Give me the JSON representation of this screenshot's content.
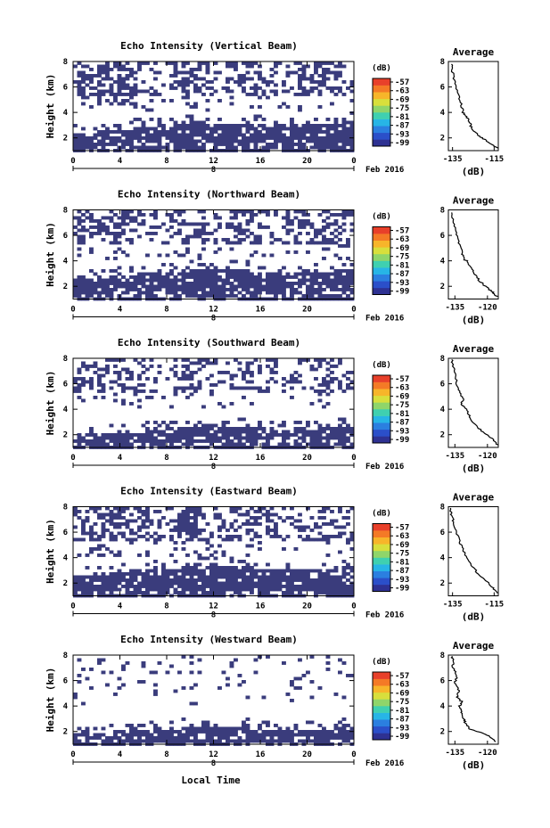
{
  "figure": {
    "xlabel": "Local Time",
    "colorbar_label": "(dB)",
    "colorbar_ticks": [
      "-57",
      "-63",
      "-69",
      "-75",
      "-81",
      "-87",
      "-93",
      "-99"
    ],
    "colormap": [
      "#2e3192",
      "#2b4fc9",
      "#2b7fe0",
      "#27b5e6",
      "#3fd0b0",
      "#8fd56a",
      "#d8df3c",
      "#f7b52a",
      "#f47a26",
      "#e8402a"
    ],
    "fill_color": "#3a3c7c",
    "average_title": "Average",
    "average_xlabel": "(dB)"
  },
  "chart_data": [
    {
      "type": "heatmap",
      "title": "Echo Intensity (Vertical Beam)",
      "ylabel": "Height (km)",
      "ylim": [
        1,
        8
      ],
      "yticks": [
        "8",
        "6",
        "4",
        "2"
      ],
      "xlim": [
        0,
        24
      ],
      "xticks": [
        "0",
        "4",
        "8",
        "12",
        "16",
        "20",
        "0"
      ],
      "date_label": "Feb 2016",
      "day_label": "8",
      "low_layer_top_km": [
        2.3,
        2.4,
        2.5,
        2.6,
        2.7,
        2.8,
        2.9,
        3.0,
        3.0,
        3.1,
        3.1,
        3.1,
        3.2,
        3.2,
        3.1,
        3.1,
        3.0,
        3.0,
        2.9,
        2.9,
        3.0,
        3.1,
        3.2,
        3.3,
        3.3
      ],
      "upper_echo_density": [
        0.55,
        0.5,
        0.6,
        0.65,
        0.55,
        0.45,
        0.35,
        0.25,
        0.45,
        0.55,
        0.5,
        0.4,
        0.25,
        0.35,
        0.45,
        0.5,
        0.35,
        0.25,
        0.3,
        0.45,
        0.5,
        0.55,
        0.45,
        0.35,
        0.5
      ],
      "average": {
        "title": "Average",
        "xlabel": "(dB)",
        "xticks": [
          "-135",
          "-115"
        ],
        "xlim": [
          -137,
          -113
        ],
        "ylim": [
          1,
          8
        ],
        "yticks": [
          "8",
          "6",
          "4",
          "2"
        ],
        "profile": [
          [
            -113.5,
            1.2
          ],
          [
            -117,
            1.6
          ],
          [
            -121,
            2.0
          ],
          [
            -124,
            2.4
          ],
          [
            -126,
            2.8
          ],
          [
            -126.5,
            3.2
          ],
          [
            -128,
            3.6
          ],
          [
            -130,
            4.0
          ],
          [
            -131,
            4.8
          ],
          [
            -132.5,
            5.6
          ],
          [
            -134,
            6.4
          ],
          [
            -135,
            7.2
          ],
          [
            -135.5,
            7.8
          ]
        ]
      }
    },
    {
      "type": "heatmap",
      "title": "Echo Intensity (Northward Beam)",
      "ylabel": "Height (km)",
      "ylim": [
        1,
        8
      ],
      "yticks": [
        "8",
        "6",
        "4",
        "2"
      ],
      "xlim": [
        0,
        24
      ],
      "xticks": [
        "0",
        "4",
        "8",
        "12",
        "16",
        "20",
        "0"
      ],
      "date_label": "Feb 2016",
      "day_label": "8",
      "low_layer_top_km": [
        2.5,
        2.6,
        2.7,
        2.8,
        2.9,
        3.0,
        3.1,
        3.2,
        3.2,
        3.3,
        3.3,
        3.4,
        3.4,
        3.3,
        3.3,
        3.2,
        3.1,
        3.0,
        3.0,
        3.0,
        3.1,
        3.2,
        3.3,
        3.4,
        3.5
      ],
      "upper_echo_density": [
        0.5,
        0.45,
        0.55,
        0.6,
        0.5,
        0.4,
        0.35,
        0.3,
        0.4,
        0.5,
        0.45,
        0.35,
        0.3,
        0.35,
        0.4,
        0.45,
        0.3,
        0.25,
        0.3,
        0.4,
        0.45,
        0.5,
        0.4,
        0.35,
        0.45
      ],
      "average": {
        "title": "Average",
        "xlabel": "(dB)",
        "xticks": [
          "-135",
          "-120"
        ],
        "xlim": [
          -138,
          -115
        ],
        "ylim": [
          1,
          8
        ],
        "yticks": [
          "8",
          "6",
          "4",
          "2"
        ],
        "profile": [
          [
            -115.5,
            1.2
          ],
          [
            -118,
            1.6
          ],
          [
            -121,
            2.0
          ],
          [
            -124,
            2.5
          ],
          [
            -126,
            3.0
          ],
          [
            -128,
            3.5
          ],
          [
            -129,
            4.0
          ],
          [
            -131,
            4.1
          ],
          [
            -131.5,
            4.6
          ],
          [
            -133,
            5.4
          ],
          [
            -134.5,
            6.2
          ],
          [
            -135.5,
            7.0
          ],
          [
            -136.5,
            7.8
          ]
        ]
      }
    },
    {
      "type": "heatmap",
      "title": "Echo Intensity (Southward Beam)",
      "ylabel": "Height (km)",
      "ylim": [
        1,
        8
      ],
      "yticks": [
        "8",
        "6",
        "4",
        "2"
      ],
      "xlim": [
        0,
        24
      ],
      "xticks": [
        "0",
        "4",
        "8",
        "12",
        "16",
        "20",
        "0"
      ],
      "date_label": "Feb 2016",
      "day_label": "8",
      "low_layer_top_km": [
        1.9,
        2.0,
        2.0,
        2.1,
        2.1,
        2.2,
        2.3,
        2.4,
        2.5,
        2.6,
        2.7,
        2.8,
        2.8,
        2.7,
        2.6,
        2.5,
        2.4,
        2.3,
        2.3,
        2.3,
        2.4,
        2.5,
        2.6,
        2.8,
        2.9
      ],
      "upper_echo_density": [
        0.4,
        0.35,
        0.4,
        0.45,
        0.4,
        0.3,
        0.25,
        0.2,
        0.35,
        0.45,
        0.4,
        0.3,
        0.25,
        0.3,
        0.35,
        0.4,
        0.25,
        0.2,
        0.25,
        0.3,
        0.35,
        0.4,
        0.3,
        0.25,
        0.35
      ],
      "average": {
        "title": "Average",
        "xlabel": "(dB)",
        "xticks": [
          "-135",
          "-120"
        ],
        "xlim": [
          -138,
          -115
        ],
        "ylim": [
          1,
          8
        ],
        "yticks": [
          "8",
          "6",
          "4",
          "2"
        ],
        "profile": [
          [
            -115.5,
            1.2
          ],
          [
            -118,
            1.7
          ],
          [
            -122,
            2.2
          ],
          [
            -126,
            2.8
          ],
          [
            -128,
            3.4
          ],
          [
            -130,
            4.0
          ],
          [
            -132,
            4.4
          ],
          [
            -131,
            4.8
          ],
          [
            -133,
            5.3
          ],
          [
            -134,
            6.0
          ],
          [
            -135,
            6.8
          ],
          [
            -136,
            7.5
          ],
          [
            -136.5,
            7.9
          ]
        ]
      }
    },
    {
      "type": "heatmap",
      "title": "Echo Intensity (Eastward Beam)",
      "ylabel": "Height (km)",
      "ylim": [
        1,
        8
      ],
      "yticks": [
        "8",
        "6",
        "4",
        "2"
      ],
      "xlim": [
        0,
        24
      ],
      "xticks": [
        "0",
        "4",
        "8",
        "12",
        "16",
        "20",
        "0"
      ],
      "date_label": "Feb 2016",
      "day_label": "8",
      "low_layer_top_km": [
        2.5,
        2.6,
        2.7,
        2.8,
        2.9,
        3.0,
        3.1,
        3.2,
        3.2,
        3.3,
        3.3,
        3.4,
        3.4,
        3.3,
        3.3,
        3.2,
        3.1,
        3.0,
        3.0,
        3.0,
        3.1,
        3.2,
        3.3,
        3.4,
        3.4
      ],
      "upper_echo_density": [
        0.5,
        0.45,
        0.55,
        0.6,
        0.5,
        0.4,
        0.35,
        0.3,
        0.45,
        0.55,
        0.5,
        0.4,
        0.3,
        0.35,
        0.45,
        0.5,
        0.35,
        0.3,
        0.3,
        0.4,
        0.45,
        0.5,
        0.4,
        0.35,
        0.45
      ],
      "average": {
        "title": "Average",
        "xlabel": "(dB)",
        "xticks": [
          "-135",
          "-115"
        ],
        "xlim": [
          -137,
          -113
        ],
        "ylim": [
          1,
          8
        ],
        "yticks": [
          "8",
          "6",
          "4",
          "2"
        ],
        "profile": [
          [
            -113.5,
            1.2
          ],
          [
            -116,
            1.7
          ],
          [
            -119,
            2.2
          ],
          [
            -123,
            2.8
          ],
          [
            -126,
            3.4
          ],
          [
            -128,
            4.0
          ],
          [
            -130,
            4.6
          ],
          [
            -131.5,
            5.2
          ],
          [
            -133,
            6.0
          ],
          [
            -134.5,
            6.8
          ],
          [
            -135.5,
            7.4
          ],
          [
            -136,
            7.9
          ]
        ]
      }
    },
    {
      "type": "heatmap",
      "title": "Echo Intensity (Westward Beam)",
      "ylabel": "Height (km)",
      "ylim": [
        1,
        8
      ],
      "yticks": [
        "8",
        "6",
        "4",
        "2"
      ],
      "xlim": [
        0,
        24
      ],
      "xticks": [
        "0",
        "4",
        "8",
        "12",
        "16",
        "20",
        "0"
      ],
      "date_label": "Feb 2016",
      "day_label": "8",
      "low_layer_top_km": [
        1.8,
        1.9,
        1.9,
        2.0,
        2.0,
        2.0,
        2.1,
        2.2,
        2.2,
        2.3,
        2.3,
        2.4,
        2.4,
        2.4,
        2.3,
        2.3,
        2.2,
        2.2,
        2.1,
        2.1,
        2.1,
        2.2,
        2.3,
        2.4,
        2.5
      ],
      "upper_echo_density": [
        0.15,
        0.1,
        0.12,
        0.15,
        0.12,
        0.1,
        0.08,
        0.06,
        0.1,
        0.12,
        0.1,
        0.08,
        0.06,
        0.08,
        0.1,
        0.1,
        0.06,
        0.05,
        0.06,
        0.08,
        0.1,
        0.12,
        0.08,
        0.06,
        0.1
      ],
      "average": {
        "title": "Average",
        "xlabel": "(dB)",
        "xticks": [
          "-135",
          "-120"
        ],
        "xlim": [
          -138,
          -115
        ],
        "ylim": [
          1,
          8
        ],
        "yticks": [
          "8",
          "6",
          "4",
          "2"
        ],
        "profile": [
          [
            -116,
            1.2
          ],
          [
            -119,
            1.6
          ],
          [
            -123,
            1.9
          ],
          [
            -128,
            2.2
          ],
          [
            -130,
            2.6
          ],
          [
            -131,
            3.0
          ],
          [
            -132,
            3.5
          ],
          [
            -133,
            4.0
          ],
          [
            -131.5,
            4.3
          ],
          [
            -134,
            4.7
          ],
          [
            -133,
            5.2
          ],
          [
            -135,
            5.8
          ],
          [
            -134,
            6.4
          ],
          [
            -136,
            7.0
          ],
          [
            -135.5,
            7.6
          ],
          [
            -136.5,
            7.9
          ]
        ]
      }
    }
  ]
}
